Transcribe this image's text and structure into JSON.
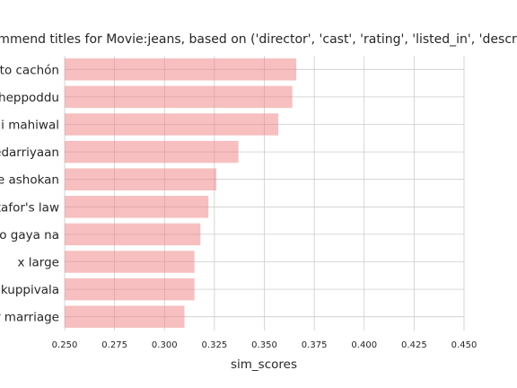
{
  "chart_data": {
    "type": "bar",
    "orientation": "horizontal",
    "title": "Recommend titles for Movie:jeans, based on ('director', 'cast', 'rating', 'listed_in', 'description')",
    "xlabel": "sim_scores",
    "ylabel": "",
    "xlim": [
      0.25,
      0.45
    ],
    "xticks": [
      "0.250",
      "0.275",
      "0.300",
      "0.325",
      "0.350",
      "0.375",
      "0.400",
      "0.425",
      "0.450"
    ],
    "grid": true,
    "bar_color": "#f08080",
    "categories": [
      "anto cachón",
      "cheppoddu",
      "ni mahiwal",
      "edarriyaan",
      "e ashokan",
      "kafor's law",
      "ho gaya na",
      "x large",
      "kuppivala",
      "er marriage"
    ],
    "values": [
      0.366,
      0.364,
      0.357,
      0.337,
      0.326,
      0.322,
      0.318,
      0.315,
      0.315,
      0.31
    ]
  }
}
